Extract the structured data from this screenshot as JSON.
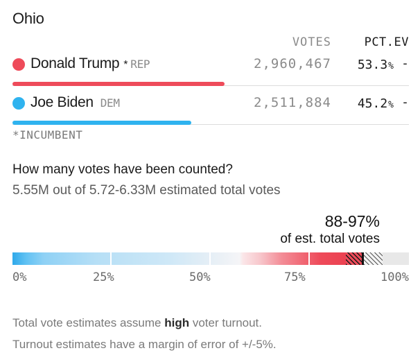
{
  "state": "Ohio",
  "columns": {
    "votes": "VOTES",
    "pct_ev": "PCT.EV"
  },
  "candidates": [
    {
      "name": "Donald Trump",
      "incumbent_mark": "*",
      "party": "REP",
      "votes": "2,960,467",
      "pct": "53.3",
      "pct_sign": "%",
      "ev": "-",
      "color": "#ee4b5a",
      "share": 0.533
    },
    {
      "name": "Joe Biden",
      "incumbent_mark": "",
      "party": "DEM",
      "votes": "2,511,884",
      "pct": "45.2",
      "pct_sign": "%",
      "ev": "-",
      "color": "#2fb3ef",
      "share": 0.452
    }
  ],
  "incumbent_note": "*INCUMBENT",
  "counted": {
    "question": "How many votes have been counted?",
    "summary": "5.55M out of 5.72-6.33M estimated total votes",
    "range_label": "88-97%",
    "range_sub": "of est. total votes",
    "range_low": 0.88,
    "range_high": 0.97,
    "axis_labels": [
      "0%",
      "25%",
      "50%",
      "75%",
      "100%"
    ]
  },
  "notes": {
    "line1_before": "Total vote estimates assume ",
    "line1_bold": "high",
    "line1_after": " voter turnout.",
    "line2": "Turnout estimates have a margin of error of +/-5%."
  },
  "colors": {
    "blue": "#2fb3ef",
    "red": "#ee4b5a",
    "gray": "#e6e6e6"
  }
}
